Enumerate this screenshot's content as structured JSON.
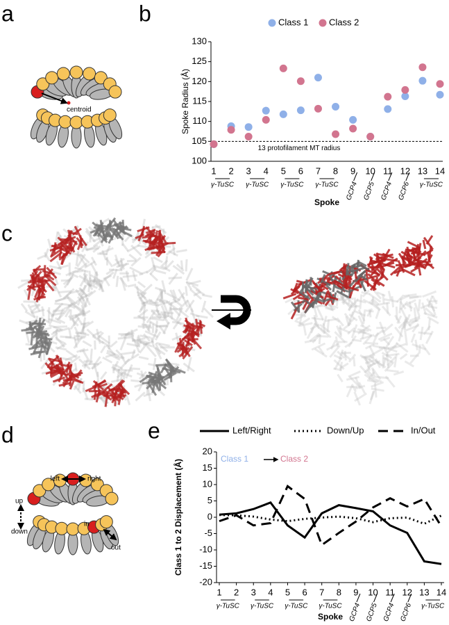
{
  "panel_labels": [
    "a",
    "b",
    "c",
    "d",
    "e"
  ],
  "diagram_a": {
    "label": "centroid"
  },
  "diagram_d": {
    "labels": [
      "left",
      "right",
      "up",
      "down",
      "in",
      "out"
    ]
  },
  "chart_data": [
    {
      "type": "scatter",
      "y_label": "Spoke Radius (Å)",
      "x_label": "Spoke",
      "categories": [
        "1",
        "2",
        "3",
        "4",
        "5",
        "6",
        "7",
        "8",
        "9",
        "10",
        "11",
        "12",
        "13",
        "14"
      ],
      "series": [
        {
          "name": "Class 1",
          "color": "#8fb0e8",
          "values": [
            104.3,
            108.8,
            108.6,
            112.7,
            111.8,
            112.8,
            121.0,
            113.7,
            110.4,
            106.2,
            113.1,
            116.3,
            120.2,
            116.7
          ]
        },
        {
          "name": "Class 2",
          "color": "#d2758f",
          "values": [
            104.3,
            107.9,
            106.2,
            110.4,
            123.3,
            120.1,
            113.2,
            106.8,
            108.2,
            106.2,
            116.2,
            117.9,
            123.6,
            119.4
          ]
        }
      ],
      "reference": {
        "value": 105,
        "label": "13 protofilament MT radius"
      },
      "groups": [
        {
          "label": "γ-TuSC",
          "from": "1",
          "to": "2"
        },
        {
          "label": "γ-TuSC",
          "from": "3",
          "to": "4"
        },
        {
          "label": "γ-TuSC",
          "from": "5",
          "to": "6"
        },
        {
          "label": "γ-TuSC",
          "from": "7",
          "to": "8"
        },
        {
          "label": "GCP4",
          "from": "9",
          "to": "9"
        },
        {
          "label": "GCP5",
          "from": "10",
          "to": "10"
        },
        {
          "label": "GCP4",
          "from": "11",
          "to": "11"
        },
        {
          "label": "GCP6",
          "from": "12",
          "to": "12"
        },
        {
          "label": "γ-TuSC",
          "from": "13",
          "to": "14"
        }
      ],
      "ylim": [
        100,
        130
      ],
      "yticks": [
        100,
        105,
        110,
        115,
        120,
        125,
        130
      ],
      "legend": "top"
    },
    {
      "type": "line",
      "y_label": "Class 1 to 2 Displacement (Å)",
      "x_label": "Spoke",
      "annotation": {
        "from": "Class 1",
        "to": "Class 2"
      },
      "categories": [
        "1",
        "2",
        "3",
        "4",
        "5",
        "6",
        "7",
        "8",
        "9",
        "10",
        "11",
        "12",
        "13",
        "14"
      ],
      "series": [
        {
          "name": "Left/Right",
          "color": "#000000",
          "dash": "solid",
          "values": [
            0.8,
            1.2,
            2.5,
            4.5,
            -2.5,
            -6.2,
            1.2,
            3.7,
            2.8,
            1.8,
            -2.5,
            -4.8,
            -13.5,
            -14.3
          ]
        },
        {
          "name": "Down/Up",
          "color": "#000000",
          "dash": "dotted",
          "values": [
            0.7,
            0.6,
            0.2,
            -0.7,
            -1.2,
            -0.5,
            -0.1,
            0.2,
            -0.3,
            -1.5,
            -0.3,
            -0.1,
            -2.0,
            0.5
          ]
        },
        {
          "name": "In/Out",
          "color": "#000000",
          "dash": "dashed",
          "values": [
            -1.2,
            0.6,
            -2.5,
            -1.8,
            9.5,
            5.6,
            -8.5,
            -4.8,
            -1.3,
            3.0,
            5.8,
            3.3,
            5.6,
            -2.8
          ]
        }
      ],
      "groups": [
        {
          "label": "γ-TuSC",
          "from": "1",
          "to": "2"
        },
        {
          "label": "γ-TuSC",
          "from": "3",
          "to": "4"
        },
        {
          "label": "γ-TuSC",
          "from": "5",
          "to": "6"
        },
        {
          "label": "γ-TuSC",
          "from": "7",
          "to": "8"
        },
        {
          "label": "GCP4",
          "from": "9",
          "to": "9"
        },
        {
          "label": "GCP5",
          "from": "10",
          "to": "10"
        },
        {
          "label": "GCP4",
          "from": "11",
          "to": "11"
        },
        {
          "label": "GCP6",
          "from": "12",
          "to": "12"
        },
        {
          "label": "γ-TuSC",
          "from": "13",
          "to": "14"
        }
      ],
      "ylim": [
        -20,
        20
      ],
      "yticks": [
        -20,
        -15,
        -10,
        -5,
        0,
        5,
        10,
        15,
        20
      ],
      "legend": "top"
    }
  ]
}
